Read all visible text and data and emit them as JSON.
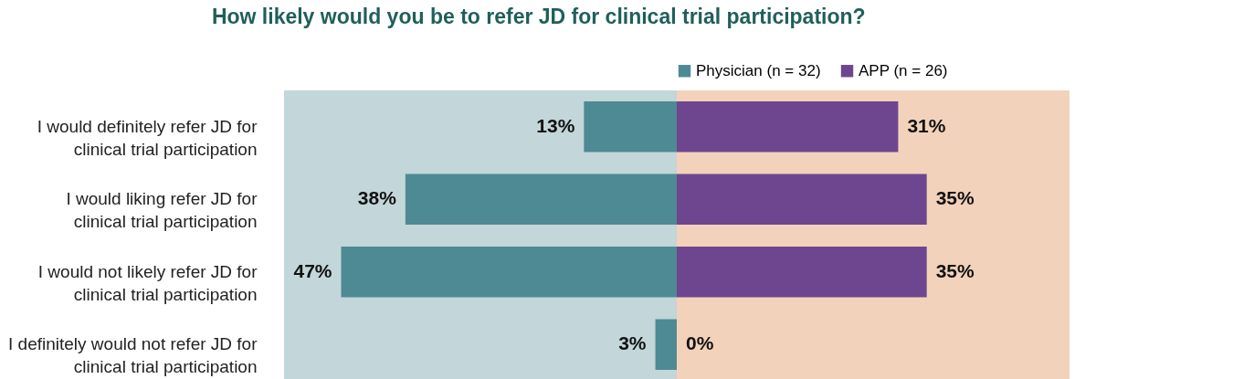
{
  "chart_data": [
    {
      "type": "bar",
      "orientation": "horizontal",
      "title": "How likely would you be to refer JD for clinical trial participation?",
      "categories": [
        "I would definitely refer JD for clinical trial participation",
        "I would liking refer JD for clinical trial participation",
        "I would not likely refer JD for clinical trial participation",
        "I definitely would not refer JD for clinical trial participation"
      ],
      "series": [
        {
          "name": "Physician (n = 32)",
          "color": "#4e8a93",
          "values": [
            13,
            38,
            47,
            3
          ],
          "value_labels": [
            "13%",
            "38%",
            "47%",
            "3%"
          ]
        }
      ],
      "legend": "top",
      "tick_labels": "y"
    },
    {
      "type": "bar",
      "orientation": "horizontal",
      "categories": [
        "I would definitely refer JD for clinical trial participation",
        "I would liking refer JD for clinical trial participation",
        "I would not likely refer JD for clinical trial participation",
        "I definitely would not refer JD for clinical trial participation"
      ],
      "series": [
        {
          "name": "APP (n = 26)",
          "color": "#6e4690",
          "values": [
            31,
            35,
            35,
            0
          ],
          "value_labels": [
            "31%",
            "35%",
            "35%",
            "0%"
          ]
        }
      ],
      "legend": "top",
      "tick_labels": false
    }
  ]
}
